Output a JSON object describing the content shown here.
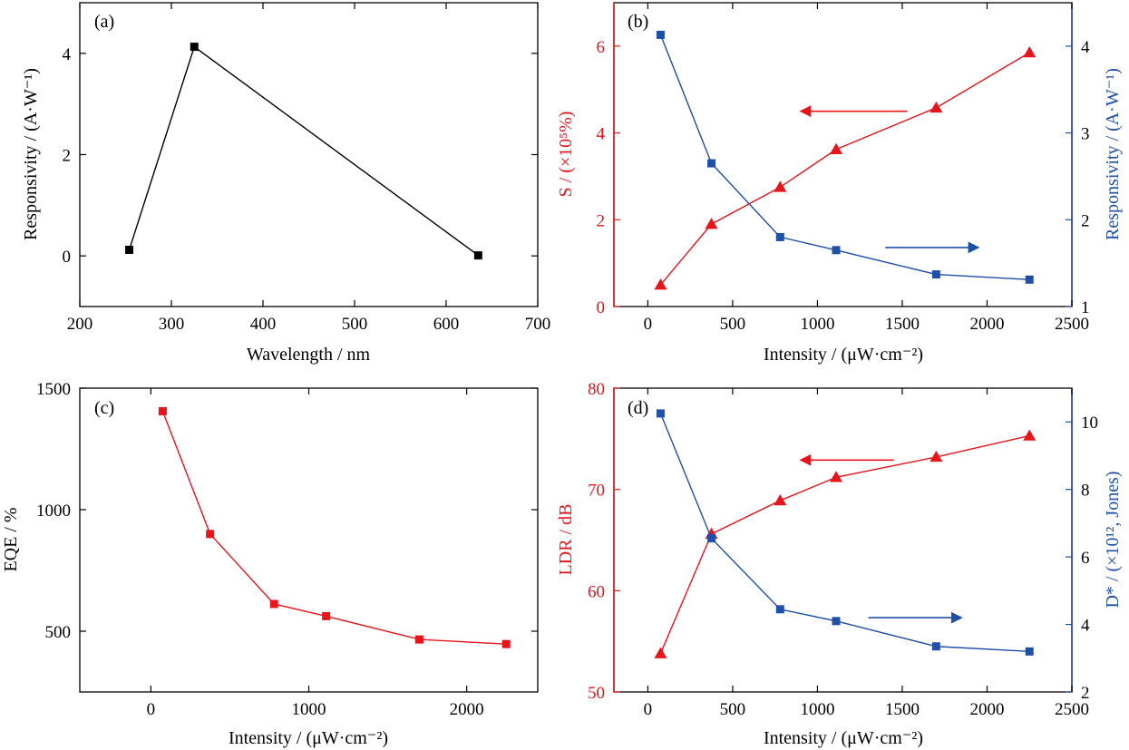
{
  "colors": {
    "black": "#000000",
    "red": "#e8141c",
    "blue": "#1f4fa6"
  },
  "chart_data": [
    {
      "id": "a",
      "type": "line",
      "panel_label": "(a)",
      "xlabel": "Wavelength / nm",
      "ylabel": "Responsivity / (A·W⁻¹)",
      "xlim": [
        200,
        700
      ],
      "ylim": [
        -1,
        5
      ],
      "xticks": [
        200,
        300,
        400,
        500,
        600,
        700
      ],
      "yticks": [
        0,
        2,
        4
      ],
      "series": [
        {
          "color": "#000000",
          "marker": "square",
          "x": [
            254,
            325,
            635
          ],
          "y": [
            0.12,
            4.13,
            0.01
          ]
        }
      ]
    },
    {
      "id": "b",
      "type": "line",
      "panel_label": "(b)",
      "xlabel": "Intensity / (μW·cm⁻²)",
      "ylabel": "S / (×10⁵%)",
      "ylabel_right": "Responsivity / (A·W⁻¹)",
      "xlim": [
        -200,
        2500
      ],
      "ylim": [
        0,
        7
      ],
      "ylim_right": [
        1,
        4.5
      ],
      "xticks": [
        0,
        500,
        1000,
        1500,
        2000,
        2500
      ],
      "yticks": [
        0,
        2,
        4,
        6
      ],
      "yticks_right": [
        1,
        2,
        3,
        4
      ],
      "series": [
        {
          "axis": "left",
          "color": "#e8141c",
          "marker": "triangle",
          "x": [
            75,
            375,
            780,
            1110,
            1700,
            2250
          ],
          "y": [
            0.5,
            1.9,
            2.75,
            3.62,
            4.58,
            5.85
          ]
        },
        {
          "axis": "right",
          "color": "#1f4fa6",
          "marker": "square",
          "x": [
            75,
            375,
            780,
            1110,
            1700,
            2250
          ],
          "y": [
            4.13,
            2.65,
            1.8,
            1.65,
            1.37,
            1.31
          ]
        }
      ],
      "arrows": [
        {
          "color": "#e8141c",
          "direction": "left",
          "x_from": 1530,
          "x_to": 900,
          "y_axis": "left",
          "y": 4.5
        },
        {
          "color": "#1f4fa6",
          "direction": "right",
          "x_from": 1400,
          "x_to": 1950,
          "y_axis": "right",
          "y": 1.68
        }
      ]
    },
    {
      "id": "c",
      "type": "line",
      "panel_label": "(c)",
      "xlabel": "Intensity / (μW·cm⁻²)",
      "ylabel": "EQE / %",
      "xlim": [
        -450,
        2450
      ],
      "ylim": [
        250,
        1500
      ],
      "xticks": [
        0,
        1000,
        2000
      ],
      "yticks": [
        500,
        1000,
        1500
      ],
      "series": [
        {
          "color": "#e8141c",
          "marker": "square",
          "x": [
            75,
            375,
            780,
            1110,
            1700,
            2250
          ],
          "y": [
            1405,
            900,
            612,
            562,
            466,
            447
          ]
        }
      ]
    },
    {
      "id": "d",
      "type": "line",
      "panel_label": "(d)",
      "xlabel": "Intensity / (μW·cm⁻²)",
      "ylabel": "LDR / dB",
      "ylabel_right": "D* / (×10¹², Jones)",
      "xlim": [
        -200,
        2500
      ],
      "ylim": [
        50,
        80
      ],
      "ylim_right": [
        2,
        11
      ],
      "xticks": [
        0,
        500,
        1000,
        1500,
        2000,
        2500
      ],
      "yticks": [
        50,
        60,
        70,
        80
      ],
      "yticks_right": [
        2,
        4,
        6,
        8,
        10
      ],
      "series": [
        {
          "axis": "left",
          "color": "#e8141c",
          "marker": "triangle",
          "x": [
            75,
            375,
            780,
            1110,
            1700,
            2250
          ],
          "y": [
            53.8,
            65.6,
            68.9,
            71.2,
            73.2,
            75.3
          ]
        },
        {
          "axis": "right",
          "color": "#1f4fa6",
          "marker": "square",
          "x": [
            75,
            375,
            780,
            1110,
            1700,
            2250
          ],
          "y": [
            10.25,
            6.55,
            4.45,
            4.1,
            3.35,
            3.2
          ]
        }
      ],
      "arrows": [
        {
          "color": "#e8141c",
          "direction": "left",
          "x_from": 1450,
          "x_to": 900,
          "y_axis": "left",
          "y": 72.9
        },
        {
          "color": "#1f4fa6",
          "direction": "right",
          "x_from": 1300,
          "x_to": 1850,
          "y_axis": "right",
          "y": 4.2
        }
      ]
    }
  ]
}
